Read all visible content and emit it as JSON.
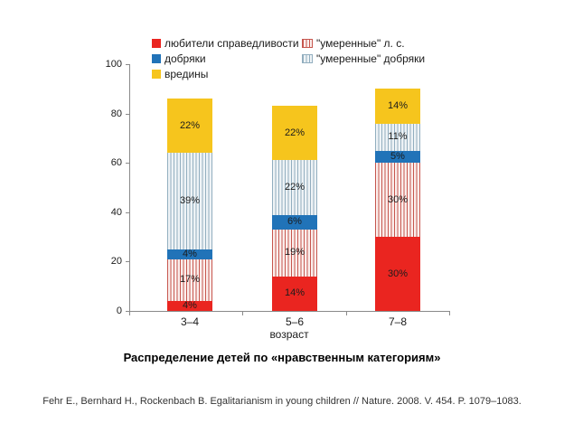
{
  "title": "Распределение детей по «нравственным категориям»",
  "citation": "Fehr E., Bernhard H., Rockenbach B. Egalitarianism in young children // Nature. 2008. V. 454. P. 1079–1083.",
  "colors": {
    "red": "#ea2520",
    "blue": "#2173b8",
    "yellow": "#f6c51d",
    "red_stripe_line": "#c6564e",
    "red_stripe_bg": "#fbeeec",
    "blue_stripe_line": "#92aebf",
    "blue_stripe_bg": "#eef3f6",
    "axis": "#8a8a8a"
  },
  "chart_data": {
    "type": "bar",
    "stacked": true,
    "categories": [
      "3–4",
      "5–6",
      "7–8"
    ],
    "xlabel": "возраст",
    "ylabel": "",
    "ylim": [
      0,
      100
    ],
    "yticks": [
      0,
      20,
      40,
      60,
      80,
      100
    ],
    "grid": false,
    "legend_position": "top",
    "data_labels": "percent inside segments",
    "series": [
      {
        "name": "любители справедливости",
        "style": "solid",
        "color": "#ea2520",
        "values": [
          4,
          14,
          30
        ]
      },
      {
        "name": "\"умеренные\" л. с.",
        "style": "striped",
        "line": "#c6564e",
        "bg": "#fbeeec",
        "values": [
          17,
          19,
          30
        ]
      },
      {
        "name": "добряки",
        "style": "solid",
        "color": "#2173b8",
        "values": [
          4,
          6,
          5
        ]
      },
      {
        "name": "\"умеренные\" добряки",
        "style": "striped",
        "line": "#92aebf",
        "bg": "#eef3f6",
        "values": [
          39,
          22,
          11
        ]
      },
      {
        "name": "вредины",
        "style": "solid",
        "color": "#f6c51d",
        "values": [
          22,
          22,
          14
        ]
      }
    ],
    "totals": [
      86,
      83,
      90
    ]
  }
}
